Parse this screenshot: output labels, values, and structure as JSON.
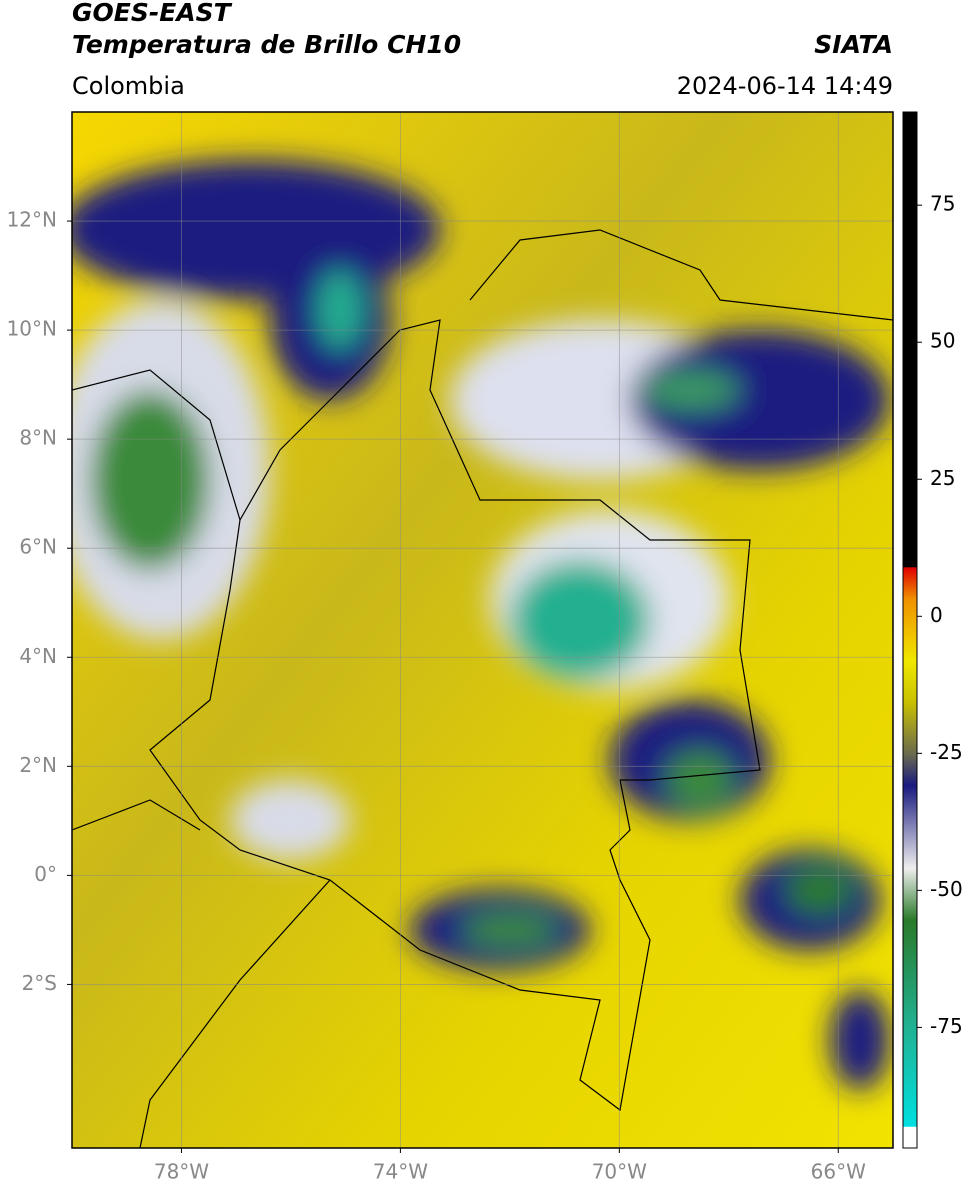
{
  "map": {
    "title": "GOES-EAST",
    "subtitle": "Temperatura de Brillo CH10",
    "source": "SIATA",
    "region": "Colombia",
    "datetime": "2024-06-14 14:49",
    "xlim": [
      -80,
      -65
    ],
    "ylim": [
      -5,
      14
    ],
    "xticks": [
      {
        "value": -78,
        "label": "78°W"
      },
      {
        "value": -74,
        "label": "74°W"
      },
      {
        "value": -70,
        "label": "70°W"
      },
      {
        "value": -66,
        "label": "66°W"
      }
    ],
    "yticks": [
      {
        "value": 12,
        "label": "12°N"
      },
      {
        "value": 10,
        "label": "10°N"
      },
      {
        "value": 8,
        "label": "8°N"
      },
      {
        "value": 6,
        "label": "6°N"
      },
      {
        "value": 4,
        "label": "4°N"
      },
      {
        "value": 2,
        "label": "2°N"
      },
      {
        "value": 0,
        "label": "0°"
      },
      {
        "value": -2,
        "label": "2°S"
      }
    ],
    "grid": true,
    "colorbar": {
      "lim": [
        -97,
        92
      ],
      "ticks": [
        75,
        50,
        25,
        0,
        -25,
        -50,
        -75
      ]
    }
  }
}
